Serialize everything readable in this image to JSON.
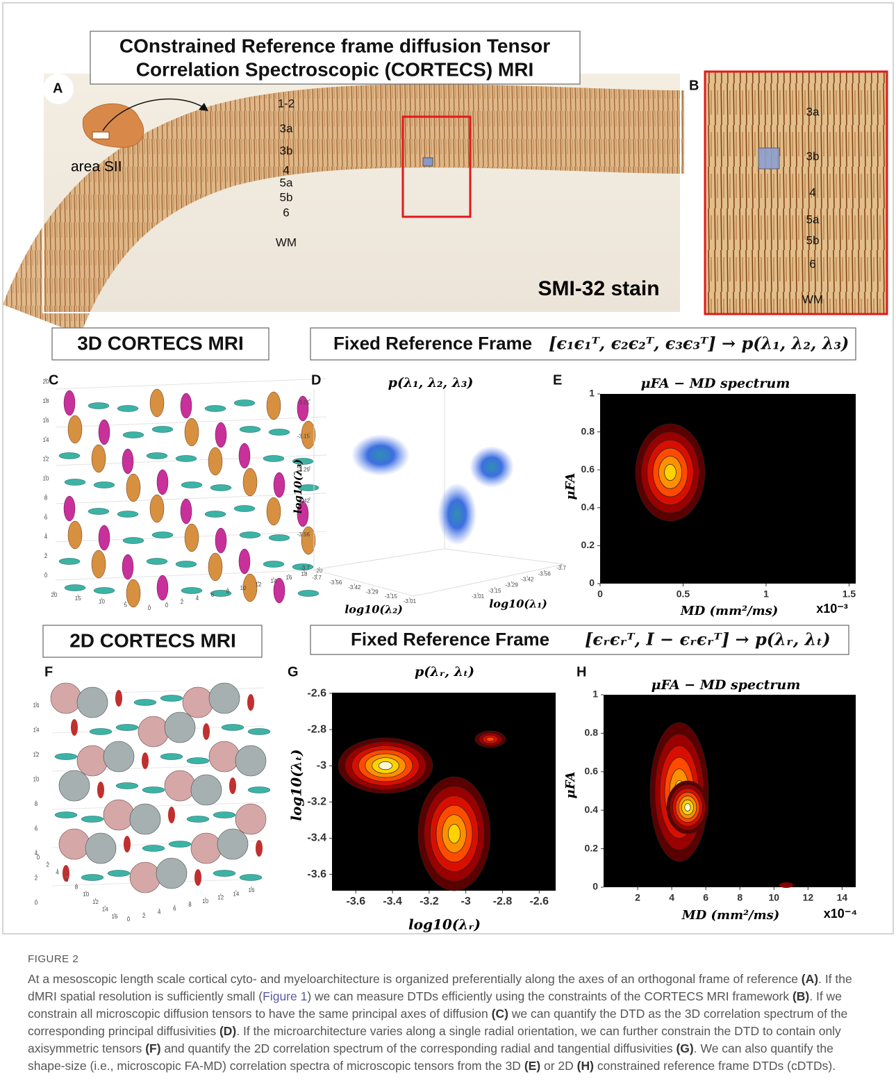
{
  "header": {
    "title_lines": [
      "COnstrained Reference frame diffusion Tensor",
      "Correlation Spectroscopic (CORTECS) MRI"
    ]
  },
  "panel_a": {
    "label": "A",
    "region": "area SII",
    "layers": [
      "1-2",
      "3a",
      "3b",
      "4",
      "5a",
      "5b",
      "6",
      "WM"
    ],
    "stain": "SMI-32 stain"
  },
  "panel_b": {
    "label": "B",
    "layers": [
      "3a",
      "3b",
      "4",
      "5a",
      "5b",
      "6",
      "WM"
    ]
  },
  "row_3d": {
    "heading": "3D CORTECS MRI",
    "frame_heading": "Fixed Reference Frame",
    "frame_formula": "[ϵ₁ϵ₁ᵀ, ϵ₂ϵ₂ᵀ, ϵ₃ϵ₃ᵀ] → p(λ₁, λ₂, λ₃)"
  },
  "panel_c": {
    "label": "C",
    "z_ticks": [
      0,
      2,
      4,
      6,
      8,
      10,
      12,
      14,
      16,
      18,
      20
    ],
    "x_ticks": [
      20,
      15,
      10,
      5,
      0
    ],
    "y_ticks": [
      0,
      2,
      4,
      6,
      8,
      10,
      12,
      14,
      16,
      18,
      20
    ]
  },
  "panel_d": {
    "label": "D",
    "title": "p(λ₁, λ₂, λ₃)",
    "z_label": "log10(λ₃)",
    "x_label": "log10(λ₁)",
    "y_label": "log10(λ₂)",
    "z_ticks": [
      -3.01,
      -3.15,
      -3.29,
      -3.42,
      -3.56,
      -3.7
    ],
    "y_ticks": [
      -3.7,
      -3.56,
      -3.42,
      -3.29,
      -3.15,
      -3.01
    ],
    "x_ticks": [
      -3.01,
      -3.15,
      -3.29,
      -3.42,
      -3.56,
      -3.7
    ]
  },
  "panel_e": {
    "label": "E",
    "title": "μFA − MD spectrum",
    "x_label": "MD (mm²/ms)",
    "y_label": "μFA",
    "x_scale": "x10⁻³",
    "xlim": [
      0,
      1.54
    ],
    "ylim": [
      0,
      1
    ],
    "xticks": [
      0,
      0.5,
      1,
      1.5
    ],
    "yticks": [
      0,
      0.2,
      0.4,
      0.6,
      0.8,
      1
    ]
  },
  "row_2d": {
    "heading": "2D CORTECS MRI",
    "frame_heading": "Fixed Reference Frame",
    "frame_formula": "[ϵᵣϵᵣᵀ, I − ϵᵣϵᵣᵀ] → p(λᵣ, λₜ)"
  },
  "panel_f": {
    "label": "F",
    "z_ticks": [
      0,
      2,
      4,
      6,
      8,
      10,
      12,
      14,
      16
    ],
    "x_ticks": [
      0,
      2,
      4,
      6,
      8,
      10,
      12,
      14,
      16
    ],
    "y_ticks": [
      0,
      2,
      4,
      6,
      8,
      10,
      12,
      14,
      16
    ]
  },
  "panel_g": {
    "label": "G",
    "title": "p(λᵣ, λₜ)",
    "x_label": "log10(λᵣ)",
    "y_label": "log10(λₜ)",
    "xlim": [
      -3.73,
      -2.51
    ],
    "ylim": [
      -3.69,
      -2.596
    ],
    "xticks": [
      -3.6,
      -3.4,
      -3.2,
      -3,
      -2.8,
      -2.6
    ],
    "yticks": [
      -3.6,
      -3.4,
      -3.2,
      -3,
      -2.8,
      -2.6
    ]
  },
  "panel_h": {
    "label": "H",
    "title": "μFA − MD spectrum",
    "x_label": "MD (mm²/ms)",
    "y_label": "μFA",
    "x_scale": "x10⁻⁴",
    "xlim": [
      0,
      14.8
    ],
    "ylim": [
      0,
      1
    ],
    "xticks": [
      2,
      4,
      6,
      8,
      10,
      12,
      14
    ],
    "yticks": [
      0,
      0.2,
      0.4,
      0.6,
      0.8,
      1
    ]
  },
  "caption": {
    "figure_label": "FIGURE 2",
    "parts": [
      "At a mesoscopic length scale cortical cyto- and myeloarchitecture is organized preferentially along the axes of an orthogonal frame of reference ",
      "(A)",
      ". If the dMRI spatial resolution is sufficiently small (",
      "Figure 1",
      ") we can measure DTDs efficiently using the constraints of the CORTECS MRI framework ",
      "(B)",
      ". If we constrain all microscopic diffusion tensors to have the same principal axes of diffusion ",
      "(C)",
      " we can quantify the DTD as the 3D correlation spectrum of the corresponding principal diffusivities ",
      "(D)",
      ". If the microarchitecture varies along a single radial orientation, we can further constrain the DTD to contain only axisymmetric tensors ",
      "(F)",
      " and quantify the 2D correlation spectrum of the corresponding radial and tangential diffusivities ",
      "(G)",
      ". We can also quantify the shape-size (i.e., microscopic FA-MD) correlation spectra of microscopic tensors from the 3D ",
      "(E)",
      " or 2D ",
      "(H)",
      " constrained reference frame DTDs (cDTDs)."
    ]
  }
}
